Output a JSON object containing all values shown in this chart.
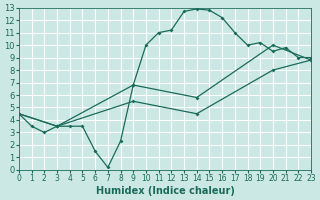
{
  "xlabel": "Humidex (Indice chaleur)",
  "background_color": "#cce8e4",
  "grid_color": "#ffffff",
  "line_color": "#1a6b5a",
  "xlim": [
    0,
    23
  ],
  "ylim": [
    0,
    13
  ],
  "xticks": [
    0,
    1,
    2,
    3,
    4,
    5,
    6,
    7,
    8,
    9,
    10,
    11,
    12,
    13,
    14,
    15,
    16,
    17,
    18,
    19,
    20,
    21,
    22,
    23
  ],
  "yticks": [
    0,
    1,
    2,
    3,
    4,
    5,
    6,
    7,
    8,
    9,
    10,
    11,
    12,
    13
  ],
  "line1_x": [
    0,
    1,
    2,
    3,
    4,
    5,
    6,
    7,
    8,
    9,
    10,
    11,
    12,
    13,
    14,
    15,
    16,
    17,
    18,
    19,
    20,
    21,
    22,
    23
  ],
  "line1_y": [
    4.5,
    3.5,
    3.0,
    3.5,
    3.5,
    3.5,
    1.5,
    0.2,
    2.3,
    6.8,
    10.0,
    11.0,
    11.2,
    12.7,
    12.9,
    12.8,
    12.2,
    11.0,
    10.0,
    10.2,
    9.5,
    9.8,
    9.0,
    9.0
  ],
  "line2_x": [
    0,
    3,
    9,
    14,
    20,
    23
  ],
  "line2_y": [
    4.5,
    3.5,
    6.8,
    5.8,
    10.0,
    8.8
  ],
  "line3_x": [
    0,
    3,
    9,
    14,
    20,
    23
  ],
  "line3_y": [
    4.5,
    3.5,
    5.5,
    4.5,
    8.0,
    8.8
  ],
  "font_size": 7
}
